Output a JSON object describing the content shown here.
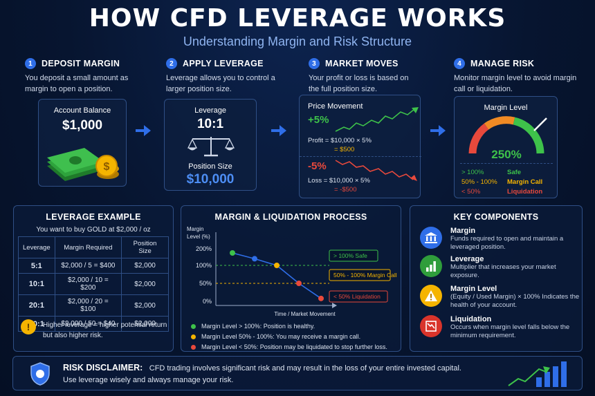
{
  "header": {
    "title": "HOW CFD LEVERAGE WORKS",
    "subtitle": "Understanding Margin and Risk Structure"
  },
  "steps": [
    {
      "num": "1",
      "title": "DEPOSIT MARGIN",
      "desc": "You deposit a small amount as margin to open a position."
    },
    {
      "num": "2",
      "title": "APPLY LEVERAGE",
      "desc": "Leverage allows you to control a larger position size."
    },
    {
      "num": "3",
      "title": "MARKET MOVES",
      "desc": "Your profit or loss is based on the full position size."
    },
    {
      "num": "4",
      "title": "MANAGE RISK",
      "desc": "Monitor margin level to avoid margin call or liquidation."
    }
  ],
  "account": {
    "label": "Account Balance",
    "value": "$1,000"
  },
  "leverage_card": {
    "label": "Leverage",
    "ratio": "10:1",
    "pos_label": "Position Size",
    "pos_value": "$10,000"
  },
  "market": {
    "title": "Price Movement",
    "up": "+5%",
    "profit_l1": "Profit = $10,000 × 5%",
    "profit_l2": "= $500",
    "down": "-5%",
    "loss_l1": "Loss = $10,000 × 5%",
    "loss_l2": "= -$500"
  },
  "margin_gauge": {
    "title": "Margin Level",
    "value": "250%",
    "level_pct": 250,
    "rows": [
      {
        "range": "> 100%",
        "status": "Safe",
        "color": "#3ec24a"
      },
      {
        "range": "50% - 100%",
        "status": "Margin Call",
        "color": "#f5b400"
      },
      {
        "range": "< 50%",
        "status": "Liquidation",
        "color": "#e8493c"
      }
    ]
  },
  "lev_example": {
    "title": "LEVERAGE EXAMPLE",
    "intro": "You want to buy GOLD at $2,000 / oz",
    "headers": [
      "Leverage",
      "Margin Required",
      "Position Size"
    ],
    "rows": [
      [
        "5:1",
        "$2,000 / 5 = $400",
        "$2,000"
      ],
      [
        "10:1",
        "$2,000 / 10 = $200",
        "$2,000"
      ],
      [
        "20:1",
        "$2,000 / 20 = $100",
        "$2,000"
      ],
      [
        "50:1",
        "$2,000 / 50 = $40",
        "$2,000"
      ]
    ],
    "note": "Higher leverage = higher potential return but also higher risk."
  },
  "process": {
    "title": "MARGIN & LIQUIDATION PROCESS",
    "ylabel1": "Margin",
    "ylabel2": "Level (%)",
    "xlabel": "Time / Market Movement",
    "ticks": [
      "200%",
      "100%",
      "50%",
      "0%"
    ],
    "tags": [
      {
        "text": "> 100%  Safe",
        "color": "#3ec24a"
      },
      {
        "text": "50% - 100%  Margin Call",
        "color": "#f5b400"
      },
      {
        "text": "< 50%  Liquidation",
        "color": "#e8493c"
      }
    ],
    "legend": [
      {
        "text": "Margin Level > 100%: Position is healthy.",
        "color": "#3ec24a"
      },
      {
        "text": "Margin Level 50% - 100%: You may receive a margin call.",
        "color": "#f5b400"
      },
      {
        "text": "Margin Level < 50%: Position may be liquidated to stop further loss.",
        "color": "#e8493c"
      }
    ]
  },
  "chart_data": {
    "type": "line",
    "title": "MARGIN & LIQUIDATION PROCESS",
    "xlabel": "Time / Market Movement",
    "ylabel": "Margin Level (%)",
    "yticks": [
      0,
      50,
      100,
      200
    ],
    "x": [
      1,
      2,
      3,
      4,
      5
    ],
    "values": [
      175,
      140,
      100,
      50,
      8
    ],
    "point_colors": [
      "#3ec24a",
      "#2f6ee8",
      "#f5b400",
      "#e8493c",
      "#e8493c"
    ]
  },
  "key_components": {
    "title": "KEY COMPONENTS",
    "items": [
      {
        "title": "Margin",
        "desc": "Funds required to open and maintain a leveraged position.",
        "icon": "bank-icon",
        "color": "#2f6ee8"
      },
      {
        "title": "Leverage",
        "desc": "Multiplier that increases your market exposure.",
        "icon": "bar-chart-icon",
        "color": "#2f9d3b"
      },
      {
        "title": "Margin Level",
        "desc": "(Equity / Used Margin) × 100% Indicates the health of your account.",
        "icon": "warning-icon",
        "color": "#f5b400"
      },
      {
        "title": "Liquidation",
        "desc": "Occurs when margin level falls below the minimum requirement.",
        "icon": "down-trend-icon",
        "color": "#d9342b"
      }
    ]
  },
  "disclaimer": {
    "label": "RISK DISCLAIMER:",
    "text1": "CFD trading involves significant risk and may result in the loss of your entire invested capital.",
    "text2": "Use leverage wisely and always manage your risk."
  }
}
